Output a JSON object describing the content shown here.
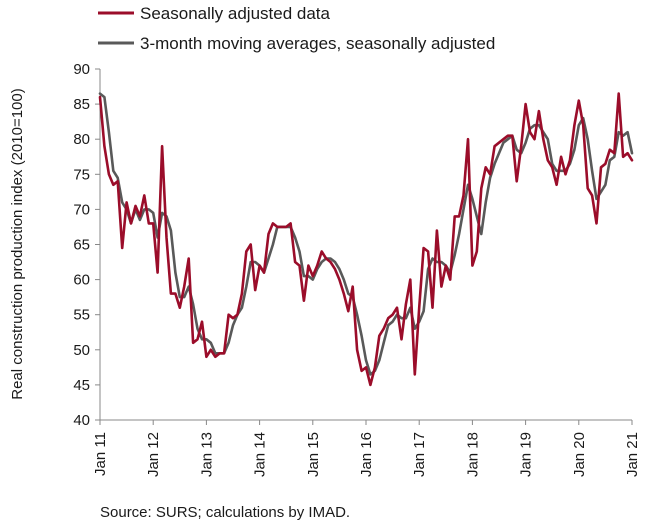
{
  "chart_data": {
    "type": "line",
    "title": "",
    "xlabel": "",
    "ylabel": "Real construction production index (2010=100)",
    "ylim": [
      40,
      90
    ],
    "yticks": [
      40,
      45,
      50,
      55,
      60,
      65,
      70,
      75,
      80,
      85,
      90
    ],
    "xticks": [
      "Jan 11",
      "Jan 12",
      "Jan 13",
      "Jan 14",
      "Jan 15",
      "Jan 16",
      "Jan 17",
      "Jan 18",
      "Jan 19",
      "Jan 20",
      "Jan 21"
    ],
    "x_start": "2011-01",
    "x_end": "2021-01",
    "grid": false,
    "legend_position": "top-left",
    "series": [
      {
        "name": "Seasonally adjusted data",
        "color": "#9b0d2a",
        "values": [
          86.0,
          79.0,
          75.0,
          73.5,
          74.0,
          64.5,
          71.0,
          68.0,
          70.5,
          69.0,
          72.0,
          68.0,
          68.0,
          61.0,
          79.0,
          66.0,
          58.0,
          58.0,
          56.0,
          59.0,
          63.0,
          51.0,
          51.5,
          54.0,
          49.0,
          50.0,
          49.0,
          49.5,
          49.5,
          55.0,
          54.5,
          55.0,
          58.0,
          64.0,
          65.0,
          58.5,
          62.0,
          61.0,
          66.5,
          68.0,
          67.5,
          67.5,
          67.5,
          68.0,
          62.5,
          62.0,
          57.0,
          62.0,
          60.5,
          62.0,
          64.0,
          63.0,
          62.5,
          61.5,
          60.0,
          58.0,
          55.5,
          59.0,
          50.0,
          47.0,
          47.5,
          45.0,
          47.5,
          52.0,
          53.0,
          54.5,
          55.0,
          56.0,
          51.5,
          56.5,
          60.0,
          46.5,
          56.0,
          64.5,
          64.0,
          56.0,
          67.0,
          59.0,
          62.0,
          60.0,
          69.0,
          69.0,
          72.0,
          80.0,
          62.0,
          64.0,
          73.0,
          76.0,
          75.0,
          79.0,
          79.5,
          80.0,
          80.5,
          80.5,
          74.0,
          79.0,
          85.0,
          81.0,
          80.0,
          84.0,
          80.0,
          77.0,
          76.0,
          73.5,
          77.5,
          75.0,
          77.0,
          82.0,
          85.5,
          82.0,
          73.0,
          72.0,
          68.0,
          76.0,
          76.5,
          78.5,
          78.0,
          86.5,
          77.5,
          78.0,
          77.0
        ]
      },
      {
        "name": "3-month moving averages, seasonally adjusted",
        "color": "#595959",
        "values": [
          86.5,
          86.0,
          81.0,
          75.5,
          74.5,
          71.0,
          70.0,
          68.0,
          70.0,
          68.5,
          70.0,
          70.0,
          69.5,
          66.0,
          69.5,
          69.0,
          67.0,
          61.0,
          57.5,
          57.5,
          59.0,
          56.5,
          53.0,
          51.5,
          51.5,
          51.0,
          49.5,
          49.5,
          49.5,
          51.0,
          53.5,
          55.0,
          56.0,
          59.0,
          62.5,
          62.5,
          62.0,
          61.0,
          63.0,
          65.0,
          67.5,
          67.5,
          67.5,
          67.5,
          66.0,
          64.0,
          60.5,
          60.5,
          60.0,
          61.5,
          62.5,
          63.0,
          63.0,
          62.5,
          61.5,
          60.0,
          58.0,
          57.5,
          55.0,
          52.0,
          48.5,
          46.5,
          47.0,
          48.5,
          51.0,
          53.5,
          54.0,
          55.0,
          54.5,
          54.5,
          56.0,
          53.0,
          54.0,
          55.5,
          61.5,
          63.0,
          62.5,
          62.5,
          62.0,
          61.0,
          63.5,
          66.5,
          70.0,
          73.5,
          71.5,
          69.0,
          66.5,
          71.0,
          74.5,
          76.5,
          78.0,
          79.5,
          80.0,
          80.5,
          78.5,
          78.0,
          79.5,
          81.5,
          82.0,
          82.0,
          81.0,
          80.0,
          76.5,
          75.5,
          75.5,
          75.5,
          76.5,
          78.5,
          82.0,
          83.0,
          80.0,
          75.5,
          71.5,
          72.5,
          73.5,
          77.0,
          77.5,
          81.0,
          80.5,
          81.0,
          78.0
        ]
      }
    ]
  },
  "legend": {
    "series1_label": "Seasonally adjusted data",
    "series2_label": "3-month moving averages, seasonally adjusted"
  },
  "source": "Source: SURS; calculations by IMAD."
}
